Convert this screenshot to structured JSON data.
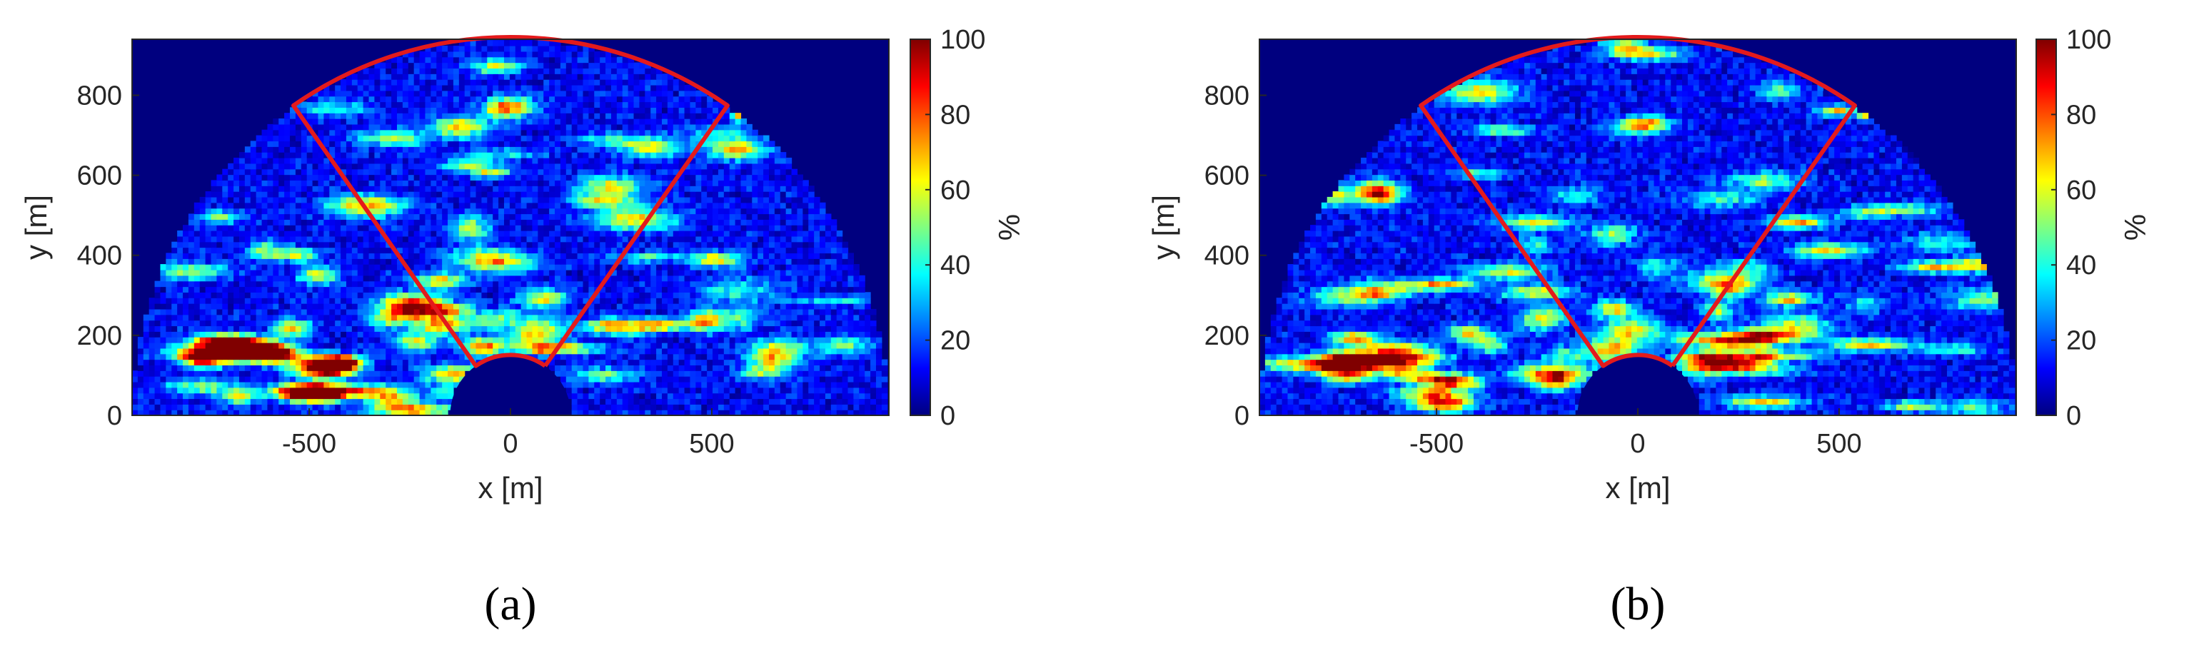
{
  "chart_data": [
    {
      "type": "heatmap",
      "panel_label": "(a)",
      "xlabel": "x [m]",
      "ylabel": "y [m]",
      "xlim": [
        -940,
        940
      ],
      "ylim": [
        0,
        940
      ],
      "xticks": [
        -500,
        0,
        500
      ],
      "yticks": [
        0,
        200,
        400,
        600,
        800
      ],
      "colorbar": {
        "label": "%",
        "range": [
          0,
          100
        ],
        "ticks": [
          0,
          20,
          40,
          60,
          80,
          100
        ],
        "colormap": "jet"
      },
      "region": {
        "outer_radius": 940,
        "inner_radius": 150,
        "sector_deg": [
          55,
          125
        ],
        "outline_color": "#e31a1c"
      },
      "grid": false,
      "seed": 17
    },
    {
      "type": "heatmap",
      "panel_label": "(b)",
      "xlabel": "x [m]",
      "ylabel": "y [m]",
      "xlim": [
        -940,
        940
      ],
      "ylim": [
        0,
        940
      ],
      "xticks": [
        -500,
        0,
        500
      ],
      "yticks": [
        0,
        200,
        400,
        600,
        800
      ],
      "colorbar": {
        "label": "%",
        "range": [
          0,
          100
        ],
        "ticks": [
          0,
          20,
          40,
          60,
          80,
          100
        ],
        "colormap": "jet"
      },
      "region": {
        "outer_radius": 940,
        "inner_radius": 150,
        "sector_deg": [
          55,
          125
        ],
        "outline_color": "#e31a1c"
      },
      "grid": false,
      "seed": 53
    }
  ],
  "colors": {
    "background_fill": "#00007f",
    "outline": "#e31a1c"
  }
}
